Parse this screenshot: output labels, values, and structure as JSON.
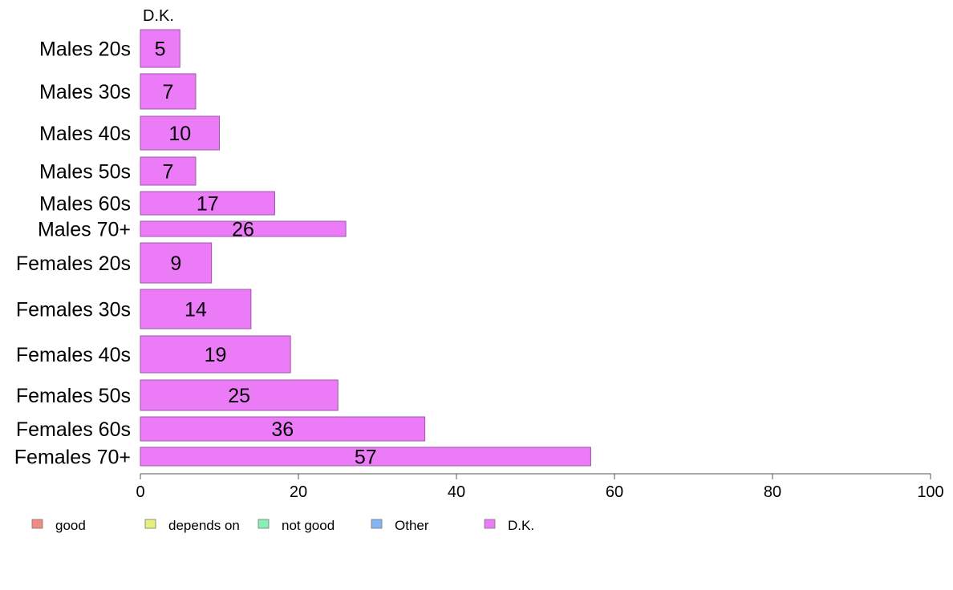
{
  "chart_data": {
    "type": "bar",
    "orientation": "horizontal",
    "title": "D.K.",
    "categories": [
      "Males 20s",
      "Males 30s",
      "Males 40s",
      "Males 50s",
      "Males 60s",
      "Males 70+",
      "Females 20s",
      "Females 30s",
      "Females 40s",
      "Females 50s",
      "Females 60s",
      "Females 70+"
    ],
    "series": [
      {
        "name": "D.K.",
        "values": [
          5,
          7,
          10,
          7,
          17,
          26,
          9,
          14,
          19,
          25,
          36,
          57
        ]
      }
    ],
    "xlim": [
      0,
      100
    ],
    "xticks": [
      0,
      20,
      40,
      60,
      80,
      100
    ],
    "grid": false,
    "legend": {
      "placement": "bottom",
      "entries": [
        {
          "label": "good",
          "color": "#F28A84"
        },
        {
          "label": "depends on",
          "color": "#E6F07A"
        },
        {
          "label": "not good",
          "color": "#86F0B4"
        },
        {
          "label": "Other",
          "color": "#86B6F2"
        },
        {
          "label": "D.K.",
          "color": "#EC7BF7"
        }
      ]
    },
    "bar_color": "#EC7BF7",
    "bar_stroke": "#9A5AA6"
  }
}
